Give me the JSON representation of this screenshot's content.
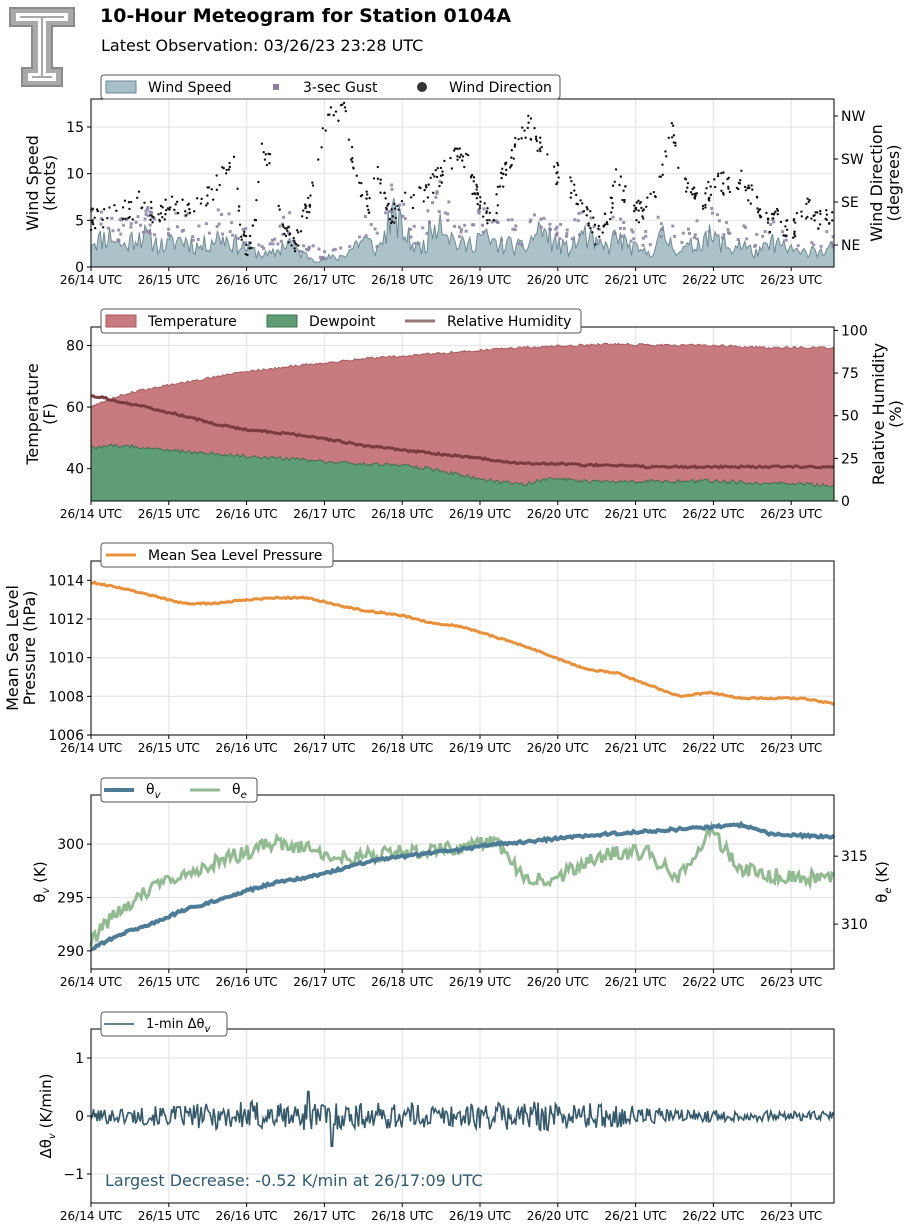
{
  "header": {
    "title": "10-Hour Meteogram for Station 0104A",
    "subtitle": "Latest Observation: 03/26/23 23:28 UTC"
  },
  "colors": {
    "wind_speed": "#a7bfc6",
    "wind_speed_edge": "#6d8b96",
    "gust": "#8a7fa3",
    "wind_dir": "#111111",
    "temperature": "#c77b7e",
    "dewpoint": "#5f9d77",
    "rh": "#7a3c3e",
    "mslp": "#e8913a",
    "theta_v": "#4d7c96",
    "theta_e": "#93bb92",
    "dtheta": "#34596b",
    "annotation": "#2f5c73",
    "logo": "#a9a9a9"
  },
  "icons": {
    "logo": "double-t-logo-icon"
  },
  "chart_data": [
    {
      "type": "area",
      "id": "wind",
      "x_tick_labels": [
        "26/14 UTC",
        "26/15 UTC",
        "26/16 UTC",
        "26/17 UTC",
        "26/18 UTC",
        "26/19 UTC",
        "26/20 UTC",
        "26/21 UTC",
        "26/22 UTC",
        "26/23 UTC"
      ],
      "ylabel": [
        "Wind Speed",
        "(knots)"
      ],
      "ylim": [
        0,
        18
      ],
      "yticks": [
        "0",
        "5",
        "10",
        "15"
      ],
      "y2label": [
        "Wind Direction",
        "(degrees)"
      ],
      "y2ticks": [
        "NE",
        "SE",
        "SW",
        "NW"
      ],
      "legend": [
        "Wind Speed",
        "3-sec Gust",
        "Wind Direction"
      ],
      "legend_position": "top-left",
      "grid": true,
      "series": [
        {
          "name": "Wind Speed",
          "type": "area",
          "values": [
            3.0,
            2.8,
            3.2,
            3.4,
            2.6,
            2.2,
            3.0,
            3.5,
            3.2,
            2.8,
            2.4,
            2.2,
            2.6,
            3.0,
            2.8,
            2.4,
            2.1,
            2.5,
            3.0,
            3.3,
            2.9,
            2.5,
            2.3,
            2.0,
            1.6,
            1.4,
            1.2,
            1.5,
            2.2,
            2.8,
            1.9,
            1.4,
            1.1,
            0.9,
            0.8,
            1.0,
            0.9,
            1.3,
            1.8,
            2.6,
            2.9,
            2.4,
            1.8,
            3.2,
            5.5,
            4.8,
            3.6,
            2.5,
            2.0,
            2.4,
            4.2,
            5.8,
            4.4,
            3.0,
            2.4,
            2.2,
            2.6,
            3.4,
            3.0,
            2.5,
            2.3,
            2.5,
            2.2,
            2.0,
            2.2,
            3.4,
            4.2,
            3.2,
            2.6,
            2.2,
            1.9,
            2.4,
            3.6,
            3.0,
            2.4,
            2.0,
            2.2,
            3.4,
            2.6,
            2.2,
            1.8,
            1.5,
            1.6,
            2.6,
            3.3,
            2.6,
            2.0,
            1.8,
            2.2,
            2.4,
            3.6,
            3.0,
            2.8,
            2.4,
            1.8,
            2.6,
            2.2,
            1.6,
            1.5,
            2.0,
            2.6,
            2.4,
            1.8,
            2.0,
            1.2,
            1.8,
            2.1,
            1.5,
            1.8,
            2.0
          ]
        },
        {
          "name": "3-sec Gust",
          "type": "scatter",
          "values": [
            5,
            5,
            5,
            5,
            4,
            4,
            5,
            5,
            5,
            5,
            4,
            4,
            4,
            5,
            5,
            4,
            4,
            4,
            5,
            5,
            5,
            4,
            4,
            3,
            3,
            2,
            2,
            3,
            4,
            5,
            3,
            2,
            2,
            2,
            1,
            2,
            2,
            2,
            3,
            4,
            5,
            4,
            3,
            5,
            7,
            7,
            5,
            4,
            3,
            4,
            6,
            8,
            7,
            5,
            4,
            4,
            4,
            5,
            5,
            4,
            4,
            4,
            4,
            3,
            4,
            5,
            6,
            5,
            4,
            4,
            3,
            4,
            5,
            5,
            4,
            3,
            4,
            5,
            4,
            4,
            3,
            3,
            3,
            4,
            5,
            4,
            3,
            3,
            4,
            4,
            5,
            5,
            5,
            4,
            3,
            4,
            4,
            3,
            3,
            3,
            4,
            4,
            3,
            3,
            2,
            3,
            3,
            3,
            3,
            3
          ]
        },
        {
          "name": "Wind Direction",
          "type": "scatter",
          "values": [
            4.8,
            5.6,
            5.2,
            6.1,
            6.4,
            6.0,
            5.8,
            6.9,
            6.3,
            6.0,
            5.5,
            6.4,
            7.0,
            6.8,
            6.2,
            6.6,
            7.2,
            7.6,
            8.4,
            9.8,
            10.8,
            11.8,
            3.0,
            2.4,
            3.6,
            12.6,
            11.6,
            9.4,
            4.0,
            3.2,
            2.4,
            4.8,
            6.8,
            11.2,
            14.0,
            16.6,
            15.4,
            17.4,
            12.8,
            9.6,
            7.4,
            6.2,
            10.6,
            7.0,
            5.2,
            6.0,
            6.8,
            7.2,
            7.6,
            8.2,
            8.8,
            9.6,
            10.4,
            11.2,
            12.0,
            11.8,
            8.8,
            7.2,
            5.6,
            4.6,
            9.0,
            10.6,
            12.4,
            13.6,
            15.2,
            14.4,
            12.6,
            11.2,
            10.2,
            9.6,
            8.8,
            7.6,
            6.0,
            5.4,
            3.6,
            4.4,
            5.6,
            9.4,
            8.2,
            7.0,
            6.2,
            5.6,
            6.8,
            7.6,
            11.0,
            15.4,
            12.2,
            9.6,
            8.4,
            7.8,
            7.2,
            8.6,
            8.8,
            9.0,
            9.2,
            9.4,
            8.8,
            7.6,
            6.0,
            5.0,
            4.6,
            5.4,
            4.0,
            3.8,
            5.2,
            6.4,
            5.8,
            4.8,
            5.2,
            4.6
          ]
        }
      ]
    },
    {
      "type": "area",
      "id": "thermo",
      "x_tick_labels": [
        "26/14 UTC",
        "26/15 UTC",
        "26/16 UTC",
        "26/17 UTC",
        "26/18 UTC",
        "26/19 UTC",
        "26/20 UTC",
        "26/21 UTC",
        "26/22 UTC",
        "26/23 UTC"
      ],
      "ylabel": [
        "Temperature",
        "(F)"
      ],
      "ylim": [
        29.5,
        86
      ],
      "yticks": [
        40,
        60,
        80
      ],
      "y2label": [
        "Relative Humidity",
        "(%)"
      ],
      "y2lim": [
        0,
        102
      ],
      "y2ticks": [
        0,
        25,
        50,
        75,
        100
      ],
      "legend": [
        "Temperature",
        "Dewpoint",
        "Relative Humidity"
      ],
      "legend_position": "top-left",
      "grid": true,
      "series": [
        {
          "name": "Temperature",
          "values": [
            60.0,
            64.0,
            66.2,
            68.0,
            69.8,
            71.5,
            72.6,
            73.8,
            74.8,
            75.9,
            76.5,
            77.3,
            78.0,
            78.8,
            79.3,
            79.8,
            80.1,
            80.4,
            80.2,
            80.0,
            80.1,
            79.6,
            79.2,
            79.3,
            79.2
          ]
        },
        {
          "name": "Dewpoint",
          "values": [
            47.0,
            47.5,
            46.8,
            45.5,
            44.8,
            44.0,
            43.4,
            42.8,
            42.0,
            41.5,
            41.0,
            40.0,
            37.8,
            36.0,
            35.0,
            37.0,
            35.8,
            35.5,
            35.8,
            36.0,
            36.0,
            35.5,
            35.5,
            35.0,
            34.5
          ]
        },
        {
          "name": "Relative Humidity",
          "values": [
            62,
            58,
            54,
            50,
            45,
            42,
            40,
            38,
            35,
            32,
            30,
            28,
            26,
            24,
            22,
            22,
            21,
            21,
            20,
            20,
            20,
            20,
            20,
            20,
            20
          ]
        }
      ]
    },
    {
      "type": "line",
      "id": "mslp",
      "x_tick_labels": [
        "26/14 UTC",
        "26/15 UTC",
        "26/16 UTC",
        "26/17 UTC",
        "26/18 UTC",
        "26/19 UTC",
        "26/20 UTC",
        "26/21 UTC",
        "26/22 UTC",
        "26/23 UTC"
      ],
      "ylabel": [
        "Mean Sea Level",
        "Pressure (hPa)"
      ],
      "ylim": [
        1006,
        1015
      ],
      "yticks": [
        1006,
        1008,
        1010,
        1012,
        1014
      ],
      "legend": [
        "Mean Sea Level Pressure"
      ],
      "legend_position": "top-left",
      "grid": true,
      "series": [
        {
          "name": "Mean Sea Level Pressure",
          "values": [
            1013.9,
            1013.6,
            1013.2,
            1012.8,
            1012.8,
            1013.0,
            1013.1,
            1013.1,
            1012.7,
            1012.4,
            1012.2,
            1011.8,
            1011.6,
            1011.1,
            1010.6,
            1010.0,
            1009.4,
            1009.2,
            1008.6,
            1008.0,
            1008.2,
            1007.9,
            1007.9,
            1007.9,
            1007.6
          ]
        }
      ]
    },
    {
      "type": "line",
      "id": "theta",
      "x_tick_labels": [
        "26/14 UTC",
        "26/15 UTC",
        "26/16 UTC",
        "26/17 UTC",
        "26/18 UTC",
        "26/19 UTC",
        "26/20 UTC",
        "26/21 UTC",
        "26/22 UTC",
        "26/23 UTC"
      ],
      "ylabel": "θv (K)",
      "ylim": [
        288.3,
        304.6
      ],
      "yticks": [
        290,
        295,
        300
      ],
      "y2label": "θe (K)",
      "y2lim": [
        306.7,
        319.5
      ],
      "y2ticks": [
        310,
        315
      ],
      "legend": [
        "θv",
        "θe"
      ],
      "legend_position": "top-left",
      "grid": true,
      "series": [
        {
          "name": "θv",
          "values": [
            290.2,
            291.6,
            292.6,
            293.8,
            294.7,
            295.6,
            296.4,
            296.9,
            297.6,
            298.4,
            298.8,
            299.2,
            299.5,
            300.0,
            300.2,
            300.5,
            300.8,
            301.0,
            301.2,
            301.4,
            301.6,
            301.8,
            300.9,
            300.8,
            300.7
          ]
        },
        {
          "name": "θe",
          "values": [
            308.8,
            311.2,
            312.6,
            313.6,
            314.5,
            315.3,
            316.0,
            315.6,
            314.9,
            315.1,
            315.3,
            315.4,
            315.7,
            316.2,
            313.4,
            313.2,
            314.8,
            315.3,
            315.2,
            313.4,
            317.0,
            314.0,
            313.6,
            313.3,
            313.6
          ]
        }
      ]
    },
    {
      "type": "line",
      "id": "dtheta",
      "x_tick_labels": [
        "26/14 UTC",
        "26/15 UTC",
        "26/16 UTC",
        "26/17 UTC",
        "26/18 UTC",
        "26/19 UTC",
        "26/20 UTC",
        "26/21 UTC",
        "26/22 UTC",
        "26/23 UTC"
      ],
      "ylabel": "Δθv (K/min)",
      "ylim": [
        -1.5,
        1.5
      ],
      "yticks": [
        -1,
        0,
        1
      ],
      "legend": [
        "1-min Δθv"
      ],
      "legend_position": "top-left",
      "grid": true,
      "annotation": "Largest Decrease: -0.52 K/min at 26/17:09 UTC",
      "series": [
        {
          "name": "1-min Δθv",
          "amplitude": [
            0.12,
            0.15,
            0.18,
            0.22,
            0.28,
            0.24,
            0.26,
            0.22,
            0.24,
            0.2,
            0.22,
            0.28,
            0.24,
            0.22,
            0.18,
            0.12,
            0.1,
            0.09,
            0.08,
            0.08
          ]
        }
      ]
    }
  ]
}
